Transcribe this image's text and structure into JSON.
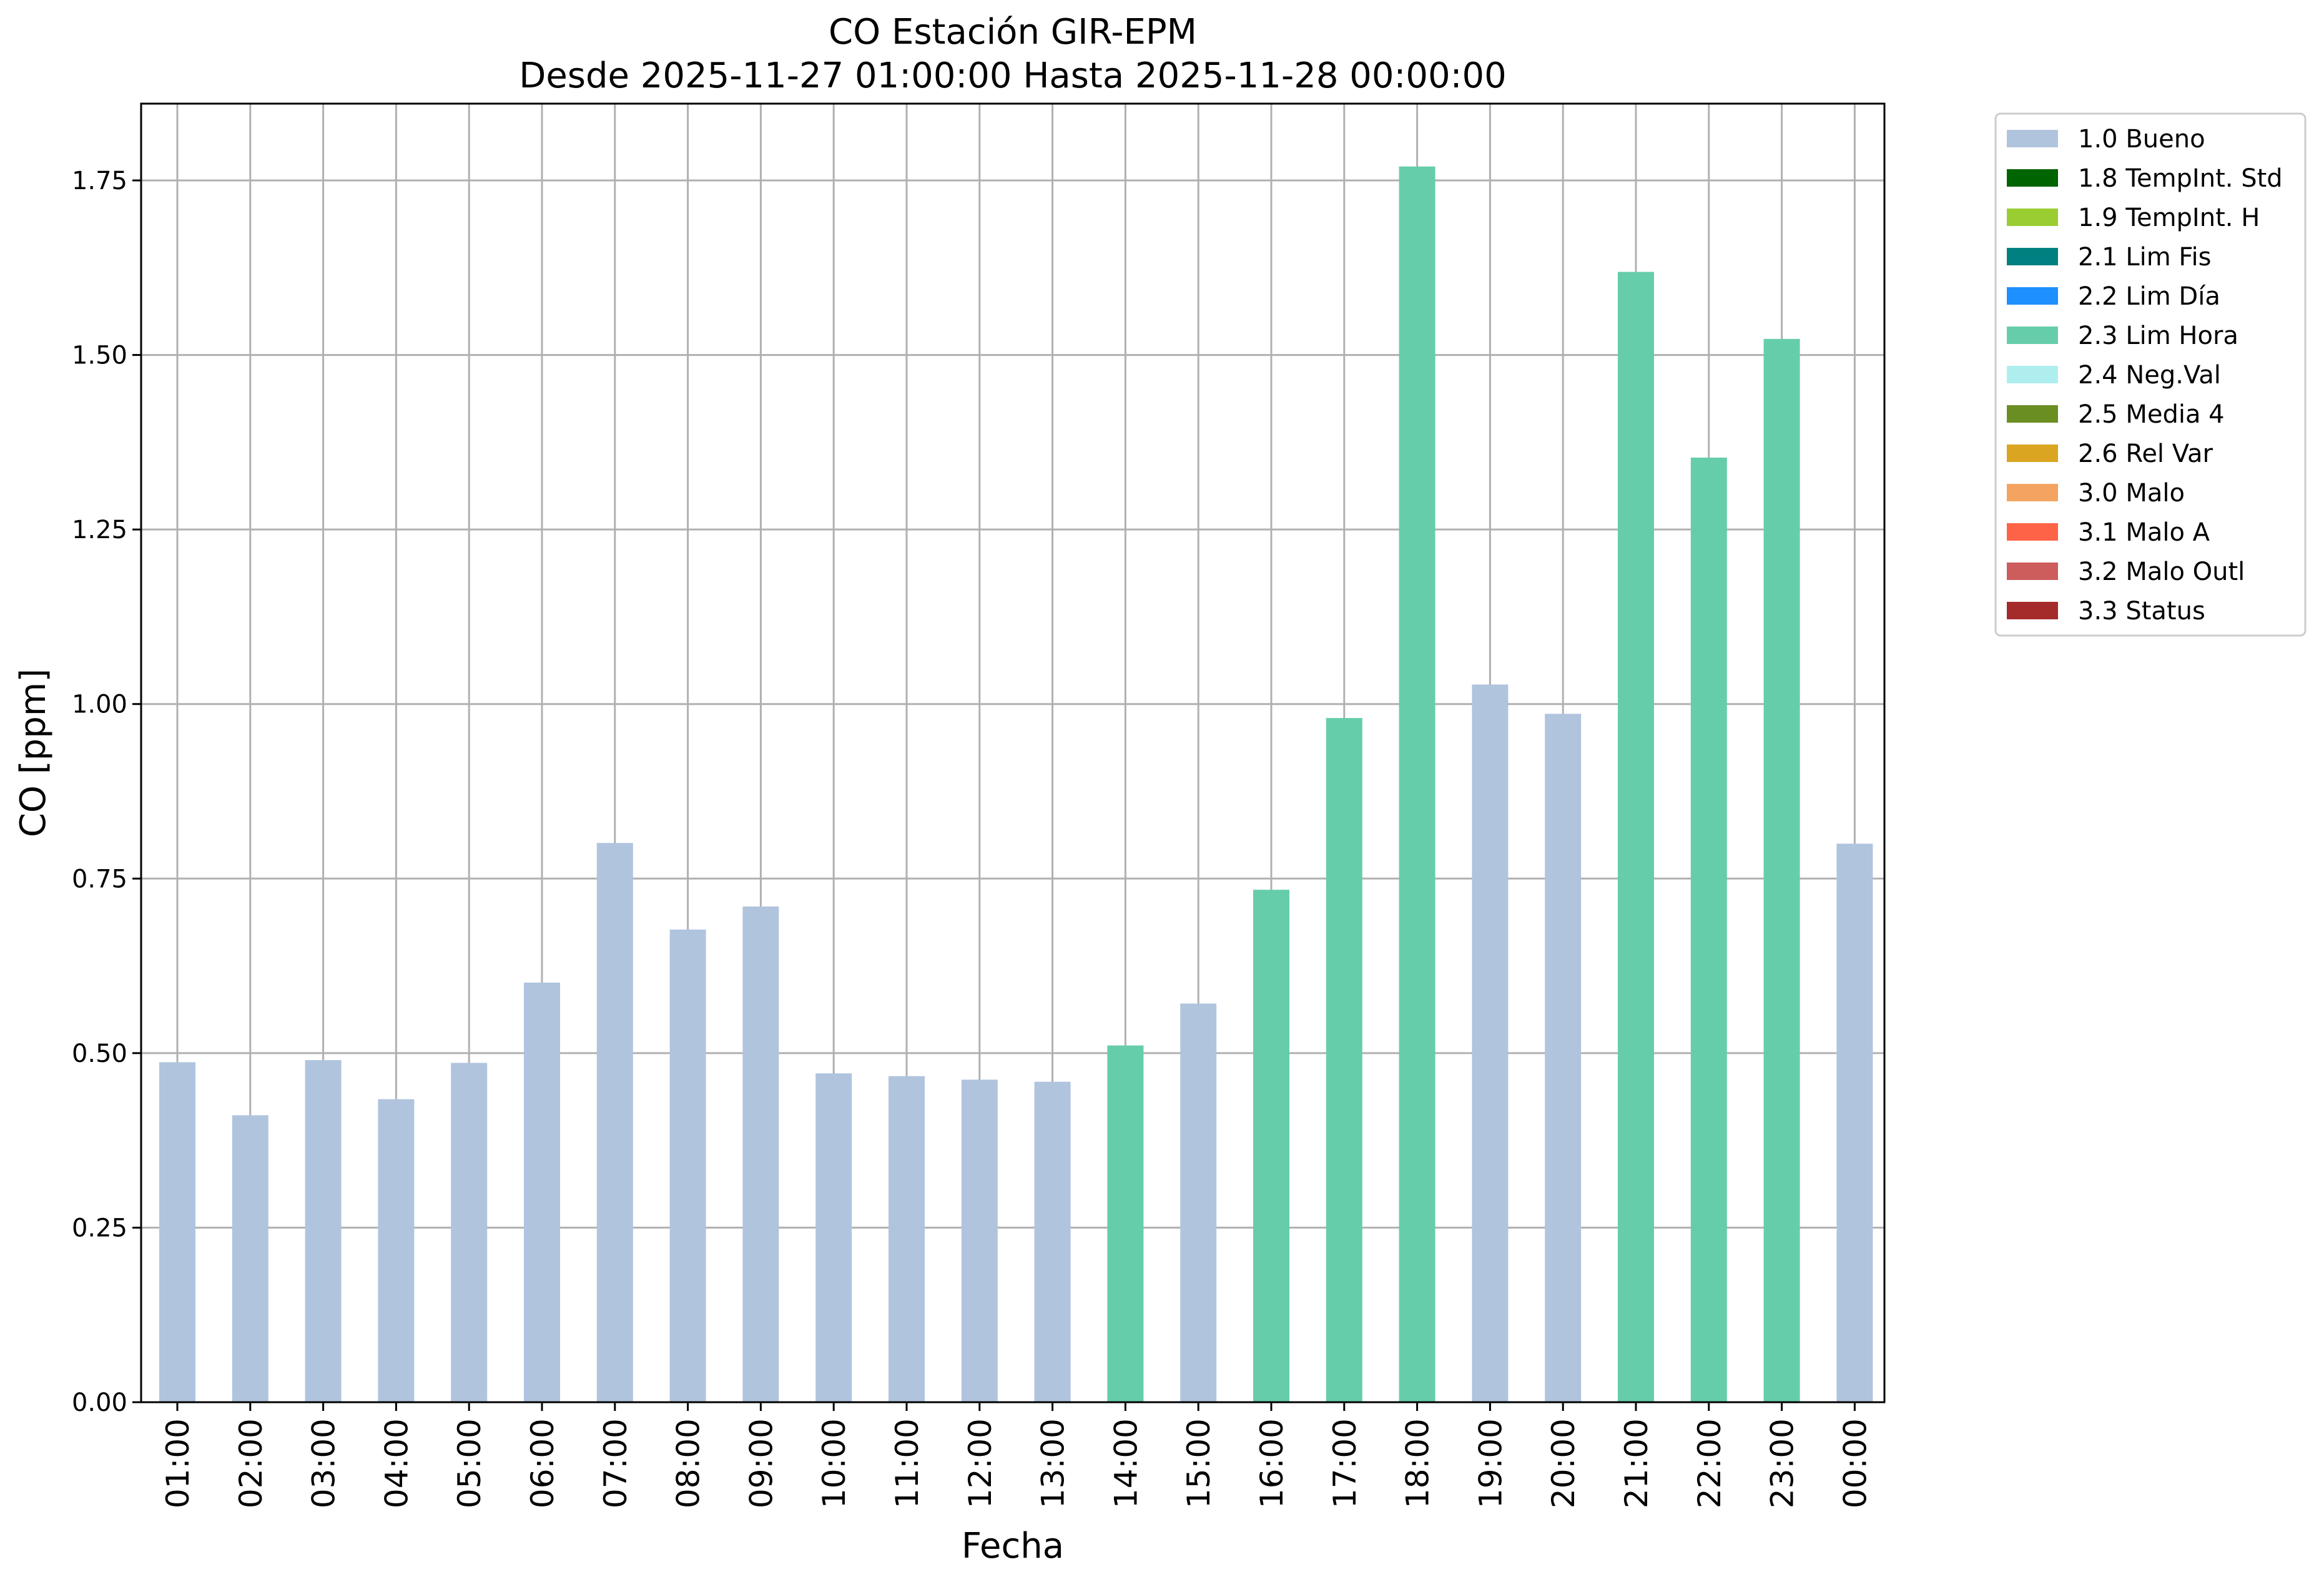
{
  "chart_data": {
    "type": "bar",
    "title": "CO Estación GIR-EPM",
    "subtitle": "Desde 2025-11-27 01:00:00 Hasta 2025-11-28 00:00:00",
    "xlabel": "Fecha",
    "ylabel": "CO [ppm]",
    "ylim": [
      0,
      1.86
    ],
    "yticks": [
      "0.00",
      "0.25",
      "0.50",
      "0.75",
      "1.00",
      "1.25",
      "1.50",
      "1.75"
    ],
    "grid": true,
    "legend_placement": "outside-right-top",
    "categories": [
      "01:00",
      "02:00",
      "03:00",
      "04:00",
      "05:00",
      "06:00",
      "07:00",
      "08:00",
      "09:00",
      "10:00",
      "11:00",
      "12:00",
      "13:00",
      "14:00",
      "15:00",
      "16:00",
      "17:00",
      "18:00",
      "19:00",
      "20:00",
      "21:00",
      "22:00",
      "23:00",
      "00:00"
    ],
    "values": [
      0.487,
      0.411,
      0.49,
      0.434,
      0.486,
      0.601,
      0.801,
      0.677,
      0.71,
      0.471,
      0.467,
      0.462,
      0.459,
      0.511,
      0.571,
      0.734,
      0.98,
      1.77,
      1.028,
      0.986,
      1.619,
      1.353,
      1.523,
      0.8
    ],
    "flags": [
      "1.0 Bueno",
      "1.0 Bueno",
      "1.0 Bueno",
      "1.0 Bueno",
      "1.0 Bueno",
      "1.0 Bueno",
      "1.0 Bueno",
      "1.0 Bueno",
      "1.0 Bueno",
      "1.0 Bueno",
      "1.0 Bueno",
      "1.0 Bueno",
      "1.0 Bueno",
      "2.3 Lim Hora",
      "1.0 Bueno",
      "2.3 Lim Hora",
      "2.3 Lim Hora",
      "2.3 Lim Hora",
      "1.0 Bueno",
      "1.0 Bueno",
      "2.3 Lim Hora",
      "2.3 Lim Hora",
      "2.3 Lim Hora",
      "1.0 Bueno"
    ],
    "legend": [
      {
        "label": "1.0 Bueno",
        "color": "#b0c4de"
      },
      {
        "label": "1.8 TempInt. Std",
        "color": "#006400"
      },
      {
        "label": "1.9 TempInt. H",
        "color": "#9acd32"
      },
      {
        "label": "2.1 Lim Fis",
        "color": "#008080"
      },
      {
        "label": "2.2 Lim Día",
        "color": "#1e90ff"
      },
      {
        "label": "2.3 Lim Hora",
        "color": "#66cdaa"
      },
      {
        "label": "2.4 Neg.Val",
        "color": "#afeeee"
      },
      {
        "label": "2.5 Media 4",
        "color": "#6b8e23"
      },
      {
        "label": "2.6 Rel Var",
        "color": "#daa520"
      },
      {
        "label": "3.0 Malo",
        "color": "#f4a460"
      },
      {
        "label": "3.1 Malo A",
        "color": "#ff6347"
      },
      {
        "label": "3.2 Malo Outl",
        "color": "#cd5c5c"
      },
      {
        "label": "3.3 Status",
        "color": "#a52a2a"
      }
    ]
  }
}
